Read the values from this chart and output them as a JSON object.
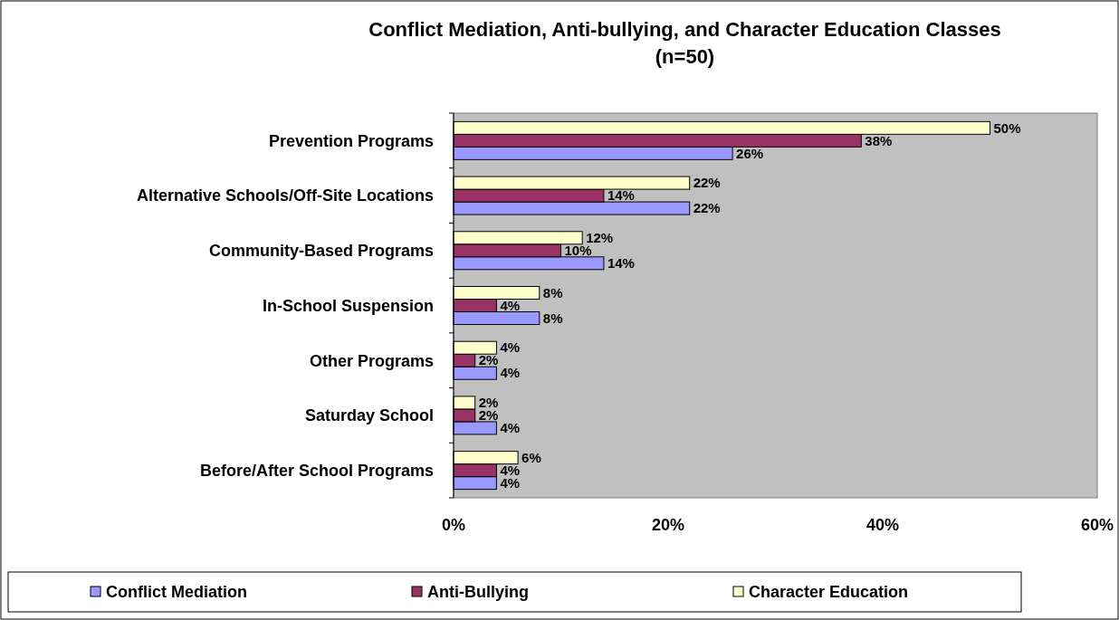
{
  "chart_data": {
    "type": "bar",
    "orientation": "horizontal",
    "title": "Conflict Mediation, Anti-bullying, and Character Education Classes\n(n=50)",
    "categories": [
      "Prevention Programs",
      "Alternative Schools/Off-Site Locations",
      "Community-Based Programs",
      "In-School Suspension",
      "Other Programs",
      "Saturday School",
      "Before/After School Programs"
    ],
    "series": [
      {
        "name": "Conflict Mediation",
        "color": "#9999ff",
        "values": [
          26,
          22,
          14,
          8,
          4,
          4,
          4
        ],
        "value_labels": [
          "26%",
          "22%",
          "14%",
          "8%",
          "4%",
          "4%",
          "4%"
        ]
      },
      {
        "name": "Anti-Bullying",
        "color": "#993366",
        "values": [
          38,
          14,
          10,
          4,
          2,
          2,
          4
        ],
        "value_labels": [
          "38%",
          "14%",
          "10%",
          "4%",
          "2%",
          "2%",
          "4%"
        ]
      },
      {
        "name": "Character Education",
        "color": "#ffffcc",
        "values": [
          50,
          22,
          12,
          8,
          4,
          2,
          6
        ],
        "value_labels": [
          "50%",
          "22%",
          "12%",
          "8%",
          "4%",
          "2%",
          "6%"
        ]
      }
    ],
    "xlim": [
      0,
      60
    ],
    "xticks": [
      {
        "value": 0,
        "label": "0%"
      },
      {
        "value": 20,
        "label": "20%"
      },
      {
        "value": 40,
        "label": "40%"
      },
      {
        "value": 60,
        "label": "60%"
      }
    ],
    "grid": false,
    "legend": "bottom"
  }
}
